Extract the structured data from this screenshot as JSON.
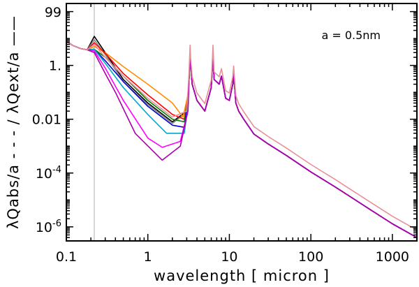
{
  "chart_data": {
    "type": "line",
    "xscale": "log",
    "yscale": "log",
    "xlim": [
      0.1,
      2000
    ],
    "ylim": [
      3e-07,
      200
    ],
    "xlabel": "wavelength [ micron ]",
    "ylabel": "λQabs/a - - - / λQext/a ——",
    "annotation": "a = 0.5nm",
    "x_ticks": [
      {
        "value": 0.1,
        "label": "0.1"
      },
      {
        "value": 1,
        "label": "1"
      },
      {
        "value": 10,
        "label": "10"
      },
      {
        "value": 100,
        "label": "100"
      },
      {
        "value": 1000,
        "label": "1000"
      }
    ],
    "y_ticks": [
      {
        "value": 99,
        "label": "99"
      },
      {
        "value": 1,
        "label": "1."
      },
      {
        "value": 0.01,
        "label": "0.01"
      },
      {
        "value": 0.0001,
        "label": "10",
        "exp": "-4"
      },
      {
        "value": 1e-06,
        "label": "10",
        "exp": "-6"
      }
    ],
    "reference_line_x": 0.22,
    "shared": {
      "uv": [
        [
          0.1,
          8
        ],
        [
          0.12,
          5.5
        ],
        [
          0.15,
          4.2
        ],
        [
          0.18,
          3.8
        ]
      ],
      "ir": [
        [
          3.2,
          0.3
        ],
        [
          3.3,
          3
        ],
        [
          3.35,
          1
        ],
        [
          3.5,
          0.2
        ],
        [
          4,
          0.05
        ],
        [
          5,
          0.02
        ],
        [
          6,
          0.15
        ],
        [
          6.2,
          1
        ],
        [
          6.3,
          3
        ],
        [
          6.5,
          0.3
        ],
        [
          7.5,
          0.2
        ],
        [
          8,
          0.4
        ],
        [
          9,
          0.06
        ],
        [
          10,
          0.05
        ],
        [
          11,
          0.2
        ],
        [
          11.3,
          0.5
        ],
        [
          12,
          0.04
        ],
        [
          13,
          0.02
        ],
        [
          15,
          0.01
        ],
        [
          20,
          0.0028
        ],
        [
          30,
          0.0012
        ],
        [
          50,
          0.00045
        ],
        [
          100,
          0.00011
        ],
        [
          200,
          3e-05
        ],
        [
          500,
          5e-06
        ],
        [
          1000,
          1.3e-06
        ],
        [
          2000,
          4e-07
        ]
      ]
    },
    "series": [
      {
        "name": "s1",
        "color": "#000000",
        "points": [
          [
            0.22,
            12
          ],
          [
            0.3,
            3
          ],
          [
            0.5,
            0.3
          ],
          [
            1,
            0.04
          ],
          [
            2,
            0.008
          ],
          [
            3,
            0.02
          ]
        ]
      },
      {
        "name": "s2",
        "color": "#888888",
        "points": [
          [
            0.22,
            9
          ],
          [
            0.3,
            2.5
          ],
          [
            0.5,
            0.25
          ],
          [
            1,
            0.035
          ],
          [
            2,
            0.007
          ],
          [
            3,
            0.018
          ]
        ]
      },
      {
        "name": "s3",
        "color": "#ff8c00",
        "points": [
          [
            0.22,
            5
          ],
          [
            0.3,
            3
          ],
          [
            0.5,
            0.9
          ],
          [
            1,
            0.2
          ],
          [
            2,
            0.04
          ],
          [
            2.7,
            0.012
          ],
          [
            3.1,
            0.08
          ]
        ]
      },
      {
        "name": "s4",
        "color": "#ff0000",
        "points": [
          [
            0.22,
            7
          ],
          [
            0.3,
            2.8
          ],
          [
            0.5,
            0.5
          ],
          [
            1,
            0.08
          ],
          [
            2,
            0.015
          ],
          [
            2.8,
            0.01
          ],
          [
            3.1,
            0.06
          ]
        ]
      },
      {
        "name": "s5",
        "color": "#008000",
        "points": [
          [
            0.22,
            4
          ],
          [
            0.3,
            2
          ],
          [
            0.5,
            0.4
          ],
          [
            1,
            0.05
          ],
          [
            2,
            0.01
          ],
          [
            2.8,
            0.008
          ],
          [
            3.1,
            0.05
          ]
        ]
      },
      {
        "name": "s6",
        "color": "#0000cc",
        "points": [
          [
            0.22,
            4
          ],
          [
            0.3,
            1.5
          ],
          [
            0.5,
            0.25
          ],
          [
            1,
            0.03
          ],
          [
            2,
            0.006
          ],
          [
            2.8,
            0.005
          ],
          [
            3.1,
            0.04
          ]
        ]
      },
      {
        "name": "s7",
        "color": "#00aacc",
        "points": [
          [
            0.22,
            4
          ],
          [
            0.3,
            1.2
          ],
          [
            0.5,
            0.15
          ],
          [
            1,
            0.015
          ],
          [
            1.7,
            0.003
          ],
          [
            2.8,
            0.003
          ],
          [
            3.1,
            0.03
          ]
        ]
      },
      {
        "name": "s8",
        "color": "#ff00ff",
        "points": [
          [
            0.22,
            3.5
          ],
          [
            0.3,
            0.8
          ],
          [
            0.5,
            0.05
          ],
          [
            1,
            0.002
          ],
          [
            1.5,
            0.0009
          ],
          [
            2.5,
            0.0015
          ],
          [
            3.1,
            0.02
          ]
        ]
      },
      {
        "name": "s9",
        "color": "#aa00aa",
        "points": [
          [
            0.22,
            3
          ],
          [
            0.3,
            0.5
          ],
          [
            0.4,
            0.1
          ],
          [
            0.7,
            0.003
          ],
          [
            1.5,
            0.0003
          ],
          [
            2.5,
            0.001
          ],
          [
            3.1,
            0.02
          ]
        ]
      },
      {
        "name": "s10",
        "color": "#e8909a",
        "points": [
          [
            0.22,
            6
          ],
          [
            0.3,
            2
          ],
          [
            0.5,
            0.4
          ],
          [
            1,
            0.06
          ],
          [
            2,
            0.012
          ],
          [
            3,
            0.02
          ]
        ],
        "ir_factor": 1.9
      }
    ]
  }
}
